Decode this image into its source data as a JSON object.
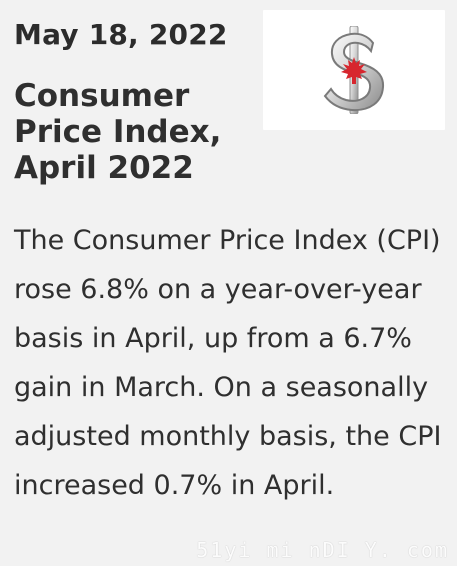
{
  "article": {
    "date": "May 18, 2022",
    "title": "Consumer Price Index, April 2022",
    "body": "The Consumer Price Index (CPI) rose 6.8% on a year-over-year basis in April, up from a 6.7% gain in March. On a seasonally adjusted monthly basis, the CPI increased 0.7% in April."
  },
  "media": {
    "thumbnail_icon": "canadian-dollar-sign-icon"
  },
  "watermark": {
    "text": "51yi mi nDI Y. com"
  },
  "colors": {
    "background": "#f2f2f2",
    "text": "#2f2f2f",
    "maple_leaf": "#d7262e",
    "thumbnail_bg": "#ffffff"
  }
}
